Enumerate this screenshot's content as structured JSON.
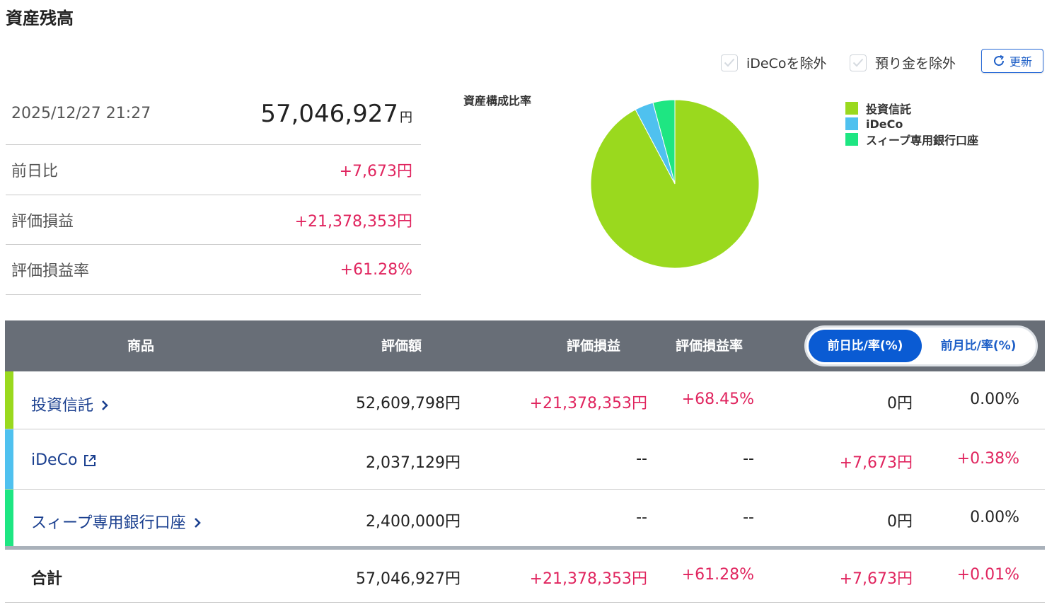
{
  "page_title": "資産残高",
  "controls": {
    "exclude_ideco_label": "iDeCoを除外",
    "exclude_deposit_label": "預り金を除外",
    "refresh_label": "更新"
  },
  "summary": {
    "datetime": "2025/12/27 21:27",
    "total_value": "57,046,927",
    "total_unit": "円",
    "rows": [
      {
        "label": "前日比",
        "value": "+7,673円"
      },
      {
        "label": "評価損益",
        "value": "+21,378,353円"
      },
      {
        "label": "評価損益率",
        "value": "+61.28%"
      }
    ]
  },
  "chart_data": {
    "type": "pie",
    "title": "資産構成比率",
    "categories": [
      "投資信託",
      "iDeCo",
      "スィープ専用銀行口座"
    ],
    "values": [
      52609798,
      2037129,
      2400000
    ],
    "colors": [
      "#9ad91e",
      "#4fc1ef",
      "#1ee682"
    ],
    "legend": "right"
  },
  "table": {
    "headers": {
      "product": "商品",
      "valuation": "評価額",
      "pl": "評価損益",
      "pl_rate": "評価損益率"
    },
    "toggle": {
      "day_label": "前日比/率(%)",
      "month_label": "前月比/率(%)"
    },
    "rows": [
      {
        "name": "投資信託",
        "icon": "chevron-right-icon",
        "color": "#9ad91e",
        "valuation": "52,609,798円",
        "pl": "+21,378,353円",
        "pl_rate": "+68.45%",
        "day_change": "0円",
        "day_rate": "0.00%"
      },
      {
        "name": "iDeCo",
        "icon": "external-link-icon",
        "color": "#4fc1ef",
        "valuation": "2,037,129円",
        "pl": "--",
        "pl_rate": "--",
        "day_change": "+7,673円",
        "day_rate": "+0.38%"
      },
      {
        "name": "スィープ専用銀行口座",
        "icon": "chevron-right-icon",
        "color": "#1ee682",
        "valuation": "2,400,000円",
        "pl": "--",
        "pl_rate": "--",
        "day_change": "0円",
        "day_rate": "0.00%"
      }
    ],
    "total": {
      "label": "合計",
      "valuation": "57,046,927円",
      "pl": "+21,378,353円",
      "pl_rate": "+61.28%",
      "day_change": "+7,673円",
      "day_rate": "+0.01%"
    }
  }
}
